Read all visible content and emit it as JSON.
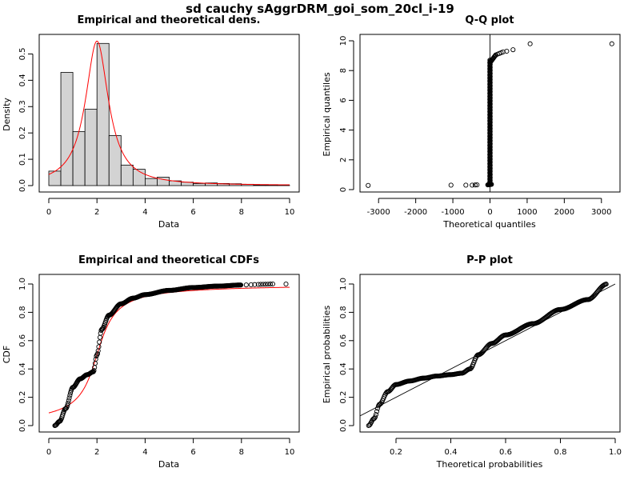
{
  "main_title": "sd cauchy sAggrDRM_goi_som_20cl_i-19",
  "colors": {
    "fit_curve": "#ff0000",
    "hist_fill": "#d3d3d3",
    "points": "#000000",
    "frame": "#000000"
  },
  "chart_data": [
    {
      "type": "bar",
      "title": "Empirical and theoretical dens.",
      "xlabel": "Data",
      "ylabel": "Density",
      "xlim": [
        0,
        10
      ],
      "ylim": [
        0,
        0.55
      ],
      "xticks": [
        "0",
        "2",
        "4",
        "6",
        "8",
        "10"
      ],
      "yticks": [
        "0.0",
        "0.1",
        "0.2",
        "0.3",
        "0.4",
        "0.5"
      ],
      "bin_width": 0.5,
      "bin_starts": [
        0,
        0.5,
        1,
        1.5,
        2,
        2.5,
        3,
        3.5,
        4,
        4.5,
        5,
        5.5,
        6,
        6.5,
        7,
        7.5,
        8,
        8.5,
        9,
        9.5
      ],
      "values": [
        0.055,
        0.43,
        0.205,
        0.29,
        0.54,
        0.19,
        0.078,
        0.062,
        0.027,
        0.032,
        0.018,
        0.013,
        0.008,
        0.01,
        0.008,
        0.007,
        0.005,
        0.002,
        0.002,
        0.001
      ],
      "fit": {
        "name": "cauchy",
        "location": 2.0,
        "scale": 0.58
      }
    },
    {
      "type": "scatter",
      "title": "Q-Q plot",
      "xlabel": "Theoretical quantiles",
      "ylabel": "Empirical quantiles",
      "xlim": [
        -3500,
        3500
      ],
      "ylim": [
        0,
        10
      ],
      "xticks": [
        "-3000",
        "-2000",
        "-1000",
        "0",
        "1000",
        "2000",
        "3000"
      ],
      "yticks": [
        "0",
        "2",
        "4",
        "6",
        "8",
        "10"
      ],
      "outliers": [
        [
          -3280,
          0.28
        ],
        [
          -1050,
          0.3
        ],
        [
          -650,
          0.3
        ],
        [
          -480,
          0.3
        ],
        [
          -400,
          0.31
        ],
        [
          -350,
          0.32
        ],
        [
          200,
          9.1
        ],
        [
          250,
          9.15
        ],
        [
          300,
          9.2
        ],
        [
          350,
          9.25
        ],
        [
          450,
          9.3
        ],
        [
          620,
          9.4
        ],
        [
          1080,
          9.8
        ],
        [
          3280,
          9.8
        ]
      ],
      "vertical_line_x": 0
    },
    {
      "type": "line",
      "title": "Empirical and theoretical CDFs",
      "xlabel": "Data",
      "ylabel": "CDF",
      "xlim": [
        0,
        10
      ],
      "ylim": [
        0,
        1
      ],
      "xticks": [
        "0",
        "2",
        "4",
        "6",
        "8",
        "10"
      ],
      "yticks": [
        "0.0",
        "0.2",
        "0.4",
        "0.6",
        "0.8",
        "1.0"
      ],
      "empirical_knots": [
        [
          0.25,
          0.0
        ],
        [
          0.45,
          0.03
        ],
        [
          0.7,
          0.12
        ],
        [
          1.0,
          0.27
        ],
        [
          1.3,
          0.33
        ],
        [
          1.6,
          0.36
        ],
        [
          1.85,
          0.38
        ],
        [
          2.0,
          0.5
        ],
        [
          2.2,
          0.68
        ],
        [
          2.5,
          0.78
        ],
        [
          3.0,
          0.86
        ],
        [
          3.5,
          0.9
        ],
        [
          4.0,
          0.925
        ],
        [
          5.0,
          0.955
        ],
        [
          6.0,
          0.975
        ],
        [
          7.0,
          0.985
        ],
        [
          8.0,
          0.993
        ],
        [
          9.0,
          0.998
        ],
        [
          9.3,
          1.0
        ]
      ],
      "sparse_tail_x": [
        8.2,
        8.4,
        8.55,
        8.7,
        8.8,
        8.9,
        9.0,
        9.1,
        9.2,
        9.3,
        9.85
      ],
      "fit": {
        "name": "cauchy",
        "location": 2.0,
        "scale": 0.58
      }
    },
    {
      "type": "scatter",
      "title": "P-P plot",
      "xlabel": "Theoretical probabilities",
      "ylabel": "Empirical probabilities",
      "xlim": [
        0.07,
        1.01
      ],
      "ylim": [
        -0.03,
        1.03
      ],
      "xticks": [
        "0.2",
        "0.4",
        "0.6",
        "0.8",
        "1.0"
      ],
      "yticks": [
        "0.0",
        "0.2",
        "0.4",
        "0.6",
        "0.8",
        "1.0"
      ],
      "curve_knots": [
        [
          0.1,
          0.0
        ],
        [
          0.12,
          0.05
        ],
        [
          0.14,
          0.15
        ],
        [
          0.17,
          0.24
        ],
        [
          0.2,
          0.29
        ],
        [
          0.25,
          0.315
        ],
        [
          0.3,
          0.335
        ],
        [
          0.35,
          0.35
        ],
        [
          0.4,
          0.36
        ],
        [
          0.44,
          0.37
        ],
        [
          0.47,
          0.4
        ],
        [
          0.5,
          0.5
        ],
        [
          0.55,
          0.58
        ],
        [
          0.6,
          0.64
        ],
        [
          0.7,
          0.72
        ],
        [
          0.8,
          0.82
        ],
        [
          0.9,
          0.89
        ],
        [
          0.97,
          1.0
        ]
      ],
      "reference_line": [
        [
          0,
          0
        ],
        [
          1,
          1
        ]
      ]
    }
  ]
}
